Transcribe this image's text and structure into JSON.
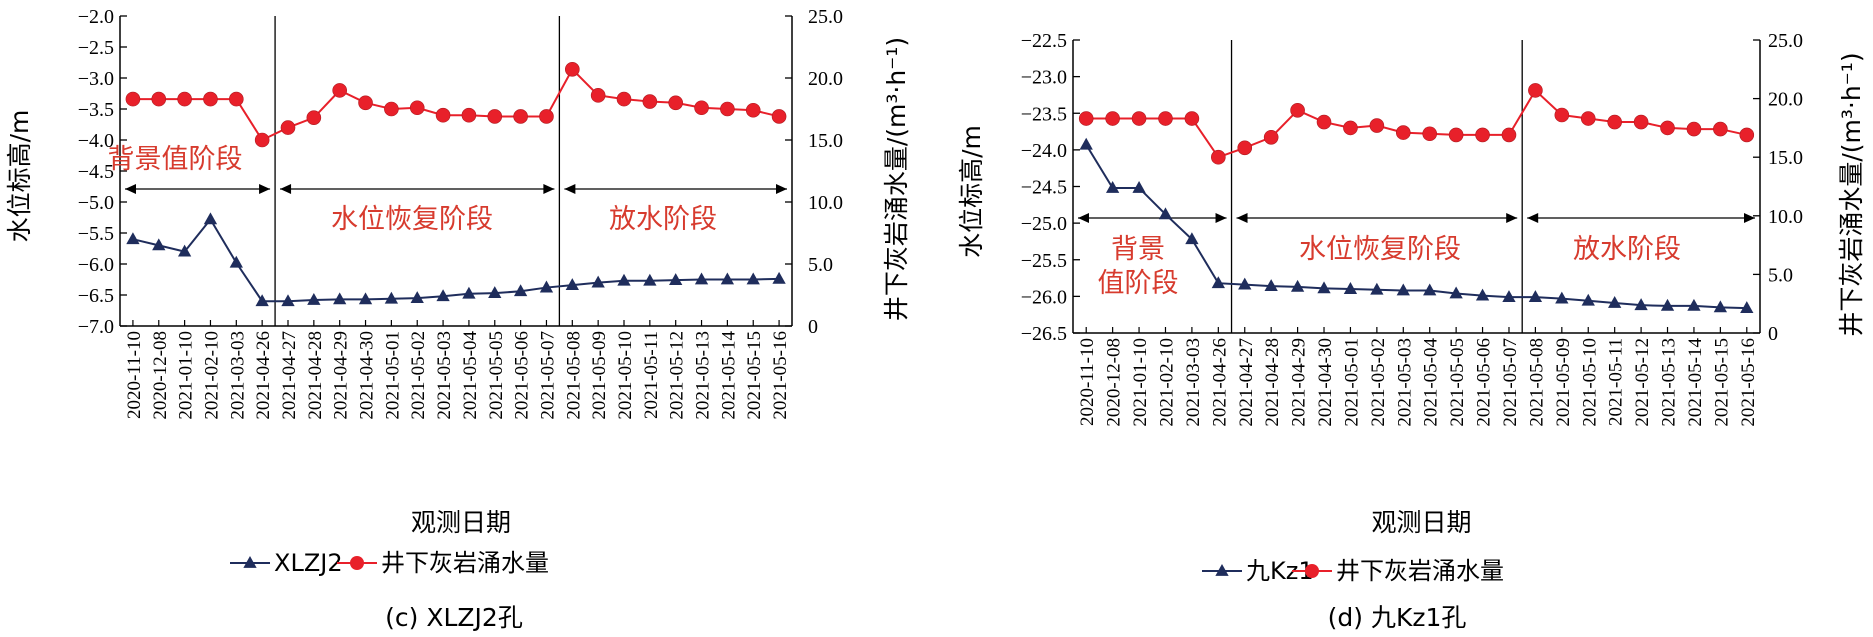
{
  "chart_data": [
    {
      "type": "line",
      "caption": "(c) XLZJ2孔",
      "xlabel": "观测日期",
      "ylabel": "水位标高/m",
      "y2label": "井下灰岩涌水量/(m³·h⁻¹)",
      "categories": [
        "2020-11-10",
        "2020-12-08",
        "2021-01-10",
        "2021-02-10",
        "2021-03-03",
        "2021-04-26",
        "2021-04-27",
        "2021-04-28",
        "2021-04-29",
        "2021-04-30",
        "2021-05-01",
        "2021-05-02",
        "2021-05-03",
        "2021-05-04",
        "2021-05-05",
        "2021-05-06",
        "2021-05-07",
        "2021-05-08",
        "2021-05-09",
        "2021-05-10",
        "2021-05-11",
        "2021-05-12",
        "2021-05-13",
        "2021-05-14",
        "2021-05-15",
        "2021-05-16"
      ],
      "ylim": [
        -7.0,
        -2.0
      ],
      "yticks": [
        "−2.0",
        "−2.5",
        "−3.0",
        "−3.5",
        "−4.0",
        "−4.5",
        "−5.0",
        "−5.5",
        "−6.0",
        "−6.5",
        "−7.0"
      ],
      "y2lim": [
        0,
        25
      ],
      "y2ticks": [
        "25.0",
        "20.0",
        "15.0",
        "10.0",
        "5.0",
        "0"
      ],
      "series": [
        {
          "name": "XLZJ2",
          "axis": "left",
          "color": "#1f2d5c",
          "marker": "triangle",
          "values": [
            -5.6,
            -5.7,
            -5.8,
            -5.28,
            -5.98,
            -6.6,
            -6.6,
            -6.58,
            -6.57,
            -6.57,
            -6.56,
            -6.55,
            -6.52,
            -6.48,
            -6.47,
            -6.44,
            -6.38,
            -6.34,
            -6.3,
            -6.27,
            -6.27,
            -6.26,
            -6.25,
            -6.25,
            -6.25,
            -6.24
          ]
        },
        {
          "name": "井下灰岩涌水量",
          "axis": "right",
          "color": "#e8202a",
          "marker": "circle",
          "values": [
            18.3,
            18.3,
            18.3,
            18.3,
            18.3,
            15.0,
            16.0,
            16.8,
            19.0,
            18.0,
            17.5,
            17.6,
            17.0,
            17.0,
            16.9,
            16.9,
            16.9,
            20.7,
            18.6,
            18.3,
            18.1,
            18.0,
            17.6,
            17.5,
            17.4,
            16.9
          ]
        }
      ],
      "stages": [
        "背景值阶段",
        "水位恢复阶段",
        "放水阶段"
      ],
      "dividers_after_categories": [
        "2021-04-26",
        "2021-05-07"
      ]
    },
    {
      "type": "line",
      "caption": "(d) 九Kz1孔",
      "xlabel": "观测日期",
      "ylabel": "水位标高/m",
      "y2label": "井下灰岩涌水量/(m³·h⁻¹)",
      "categories": [
        "2020-11-10",
        "2020-12-08",
        "2021-01-10",
        "2021-02-10",
        "2021-03-03",
        "2021-04-26",
        "2021-04-27",
        "2021-04-28",
        "2021-04-29",
        "2021-04-30",
        "2021-05-01",
        "2021-05-02",
        "2021-05-03",
        "2021-05-04",
        "2021-05-05",
        "2021-05-06",
        "2021-05-07",
        "2021-05-08",
        "2021-05-09",
        "2021-05-10",
        "2021-05-11",
        "2021-05-12",
        "2021-05-13",
        "2021-05-14",
        "2021-05-15",
        "2021-05-16"
      ],
      "ylim": [
        -26.5,
        -22.5
      ],
      "yticks": [
        "−22.5",
        "−23.0",
        "−23.5",
        "−24.0",
        "−24.5",
        "−25.0",
        "−25.5",
        "−26.0",
        "−26.5"
      ],
      "y2lim": [
        0,
        25
      ],
      "y2ticks": [
        "25.0",
        "20.0",
        "15.0",
        "10.0",
        "5.0",
        "0"
      ],
      "series": [
        {
          "name": "九Kz1",
          "axis": "left",
          "color": "#1f2d5c",
          "marker": "triangle",
          "values": [
            -23.93,
            -24.52,
            -24.52,
            -24.88,
            -25.22,
            -25.82,
            -25.84,
            -25.86,
            -25.87,
            -25.89,
            -25.9,
            -25.91,
            -25.92,
            -25.92,
            -25.96,
            -25.99,
            -26.01,
            -26.01,
            -26.03,
            -26.06,
            -26.09,
            -26.12,
            -26.13,
            -26.13,
            -26.15,
            -26.16
          ]
        },
        {
          "name": "井下灰岩涌水量",
          "axis": "right",
          "color": "#e8202a",
          "marker": "circle",
          "values": [
            18.3,
            18.3,
            18.3,
            18.3,
            18.3,
            15.0,
            15.8,
            16.7,
            19.0,
            18.0,
            17.5,
            17.7,
            17.1,
            17.0,
            16.9,
            16.9,
            16.9,
            20.7,
            18.6,
            18.3,
            18.0,
            18.0,
            17.5,
            17.4,
            17.4,
            16.9
          ]
        }
      ],
      "stages": [
        "背景\n值阶段",
        "水位恢复阶段",
        "放水阶段"
      ],
      "dividers_after_categories": [
        "2021-04-26",
        "2021-05-07"
      ]
    }
  ]
}
